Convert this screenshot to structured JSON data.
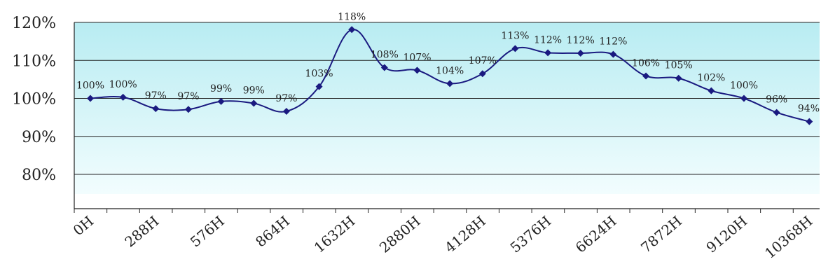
{
  "chart_data": {
    "type": "line",
    "title": "",
    "xlabel": "",
    "ylabel": "",
    "ylim": [
      75,
      120
    ],
    "y_ticks": [
      80,
      90,
      100,
      110,
      120
    ],
    "y_tick_labels": [
      "80%",
      "90%",
      "100%",
      "110%",
      "120%"
    ],
    "grid": "horizontal",
    "legend": "none",
    "x_tick_labels": [
      "0H",
      "288H",
      "576H",
      "864H",
      "1632H",
      "2880H",
      "4128H",
      "5376H",
      "6624H",
      "7872H",
      "9120H",
      "10368H"
    ],
    "series": [
      {
        "color": "#1a1a80",
        "values": [
          100,
          100.3,
          97.3,
          97.1,
          99.2,
          98.7,
          96.6,
          103.1,
          118.1,
          108.1,
          107.4,
          103.9,
          106.5,
          113.1,
          112,
          111.9,
          111.6,
          105.9,
          105.3,
          102,
          100,
          96.3,
          93.9
        ],
        "labels": [
          "100%",
          "100%",
          "97%",
          "97%",
          "99%",
          "99%",
          "97%",
          "103%",
          "118%",
          "108%",
          "107%",
          "104%",
          "107%",
          "113%",
          "112%",
          "112%",
          "112%",
          "106%",
          "105%",
          "102%",
          "100%",
          "96%",
          "94%"
        ]
      }
    ]
  }
}
